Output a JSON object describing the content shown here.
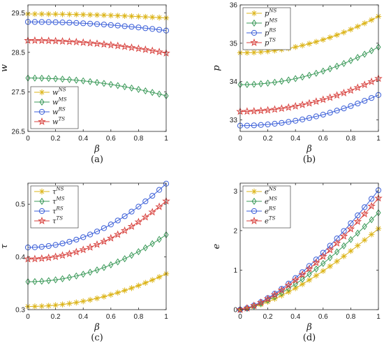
{
  "colors": {
    "NS": "#dcb418",
    "MS": "#3c9a5a",
    "RS": "#3b5fd8",
    "TS": "#d8433f"
  },
  "chart_data": [
    {
      "id": "a",
      "type": "line",
      "caption": "(a)",
      "xlabel": "β",
      "ylabel": "w",
      "xlim": [
        0,
        1
      ],
      "ylim": [
        26.5,
        29.7
      ],
      "xticks": [
        "0",
        "0.2",
        "0.4",
        "0.6",
        "0.8",
        "1"
      ],
      "xtick_values": [
        0,
        0.2,
        0.4,
        0.6,
        0.8,
        1
      ],
      "yticks": [
        "26.5",
        "27.5",
        "28.5",
        "29.5"
      ],
      "ytick_values": [
        26.5,
        27.5,
        28.5,
        29.5
      ],
      "legend_position": "bottom-left",
      "series": [
        {
          "key": "NS",
          "label": "w",
          "sup": "NS",
          "marker": "star",
          "start": 29.47,
          "end": 29.37,
          "shape": "concave"
        },
        {
          "key": "MS",
          "label": "w",
          "sup": "MS",
          "marker": "diamond",
          "start": 27.85,
          "end": 27.4,
          "shape": "concave"
        },
        {
          "key": "RS",
          "label": "w",
          "sup": "RS",
          "marker": "circle",
          "start": 29.27,
          "end": 29.05,
          "shape": "concave"
        },
        {
          "key": "TS",
          "label": "w",
          "sup": "TS",
          "marker": "pentagram",
          "start": 28.8,
          "end": 28.48,
          "shape": "concave"
        }
      ]
    },
    {
      "id": "b",
      "type": "line",
      "caption": "(b)",
      "xlabel": "β",
      "ylabel": "p",
      "xlim": [
        0,
        1
      ],
      "ylim": [
        32.7,
        36
      ],
      "xticks": [
        "0",
        "0.2",
        "0.4",
        "0.6",
        "0.8",
        "1"
      ],
      "xtick_values": [
        0,
        0.2,
        0.4,
        0.6,
        0.8,
        1
      ],
      "yticks": [
        "33",
        "34",
        "35",
        "36"
      ],
      "ytick_values": [
        33,
        34,
        35,
        36
      ],
      "legend_position": "top-left",
      "series": [
        {
          "key": "NS",
          "label": "p",
          "sup": "NS",
          "marker": "star",
          "start": 34.75,
          "end": 35.7,
          "shape": "convex"
        },
        {
          "key": "MS",
          "label": "p",
          "sup": "MS",
          "marker": "diamond",
          "start": 33.92,
          "end": 34.9,
          "shape": "convex"
        },
        {
          "key": "RS",
          "label": "p",
          "sup": "RS",
          "marker": "circle",
          "start": 32.85,
          "end": 33.65,
          "shape": "convex"
        },
        {
          "key": "TS",
          "label": "p",
          "sup": "TS",
          "marker": "pentagram",
          "start": 33.22,
          "end": 34.08,
          "shape": "convex"
        }
      ]
    },
    {
      "id": "c",
      "type": "line",
      "caption": "(c)",
      "xlabel": "β",
      "ylabel": "τ",
      "xlim": [
        0,
        1
      ],
      "ylim": [
        0.3,
        0.54
      ],
      "xticks": [
        "0",
        "0.2",
        "0.4",
        "0.6",
        "0.8",
        "1"
      ],
      "xtick_values": [
        0,
        0.2,
        0.4,
        0.6,
        0.8,
        1
      ],
      "yticks": [
        "0.3",
        "0.4",
        "0.5"
      ],
      "ytick_values": [
        0.3,
        0.4,
        0.5
      ],
      "legend_position": "top-left",
      "series": [
        {
          "key": "NS",
          "label": "τ",
          "sup": "NS",
          "marker": "star",
          "start": 0.306,
          "end": 0.368,
          "shape": "convex"
        },
        {
          "key": "MS",
          "label": "τ",
          "sup": "MS",
          "marker": "diamond",
          "start": 0.353,
          "end": 0.442,
          "shape": "convex"
        },
        {
          "key": "RS",
          "label": "τ",
          "sup": "RS",
          "marker": "circle",
          "start": 0.418,
          "end": 0.539,
          "shape": "convex"
        },
        {
          "key": "TS",
          "label": "τ",
          "sup": "TS",
          "marker": "pentagram",
          "start": 0.396,
          "end": 0.506,
          "shape": "convex"
        }
      ]
    },
    {
      "id": "d",
      "type": "line",
      "caption": "(d)",
      "xlabel": "β",
      "ylabel": "e",
      "xlim": [
        0,
        1
      ],
      "ylim": [
        0,
        3.2
      ],
      "xticks": [
        "0",
        "0.2",
        "0.4",
        "0.6",
        "0.8",
        "1"
      ],
      "xtick_values": [
        0,
        0.2,
        0.4,
        0.6,
        0.8,
        1
      ],
      "yticks": [
        "0",
        "1",
        "2",
        "3"
      ],
      "ytick_values": [
        0,
        1,
        2,
        3
      ],
      "legend_position": "top-left",
      "series": [
        {
          "key": "NS",
          "label": "e",
          "sup": "NS",
          "marker": "star",
          "start": 0.0,
          "end": 2.05,
          "shape": "power"
        },
        {
          "key": "MS",
          "label": "e",
          "sup": "MS",
          "marker": "diamond",
          "start": 0.0,
          "end": 2.45,
          "shape": "power"
        },
        {
          "key": "RS",
          "label": "e",
          "sup": "RS",
          "marker": "circle",
          "start": 0.0,
          "end": 3.02,
          "shape": "power"
        },
        {
          "key": "TS",
          "label": "e",
          "sup": "TS",
          "marker": "pentagram",
          "start": 0.0,
          "end": 2.82,
          "shape": "power"
        }
      ]
    }
  ]
}
